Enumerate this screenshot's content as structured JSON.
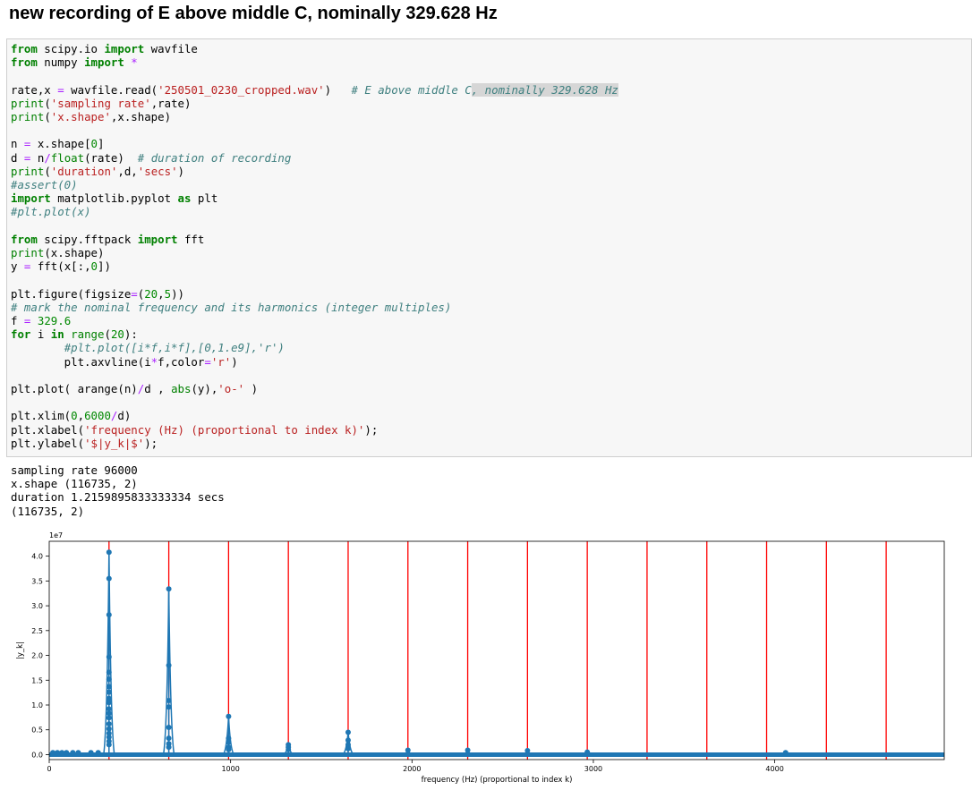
{
  "heading": "new recording of E above middle C, nominally 329.628 Hz",
  "code_lines": [
    [
      [
        "k",
        "from"
      ],
      [
        "p",
        " scipy.io "
      ],
      [
        "k",
        "import"
      ],
      [
        "p",
        " wavfile"
      ]
    ],
    [
      [
        "k",
        "from"
      ],
      [
        "p",
        " numpy "
      ],
      [
        "k",
        "import"
      ],
      [
        "p",
        " "
      ],
      [
        "o",
        "*"
      ]
    ],
    [],
    [
      [
        "p",
        "rate,x "
      ],
      [
        "o",
        "="
      ],
      [
        "p",
        " wavfile.read("
      ],
      [
        "s",
        "'250501_0230_cropped.wav'"
      ],
      [
        "p",
        ")   "
      ],
      [
        "c",
        "# E above middle C"
      ],
      [
        "chl",
        ", nominally 329.628 Hz"
      ]
    ],
    [
      [
        "b",
        "print"
      ],
      [
        "p",
        "("
      ],
      [
        "s",
        "'sampling rate'"
      ],
      [
        "p",
        ",rate)"
      ]
    ],
    [
      [
        "b",
        "print"
      ],
      [
        "p",
        "("
      ],
      [
        "s",
        "'x.shape'"
      ],
      [
        "p",
        ",x.shape)"
      ]
    ],
    [],
    [
      [
        "p",
        "n "
      ],
      [
        "o",
        "="
      ],
      [
        "p",
        " x.shape["
      ],
      [
        "n",
        "0"
      ],
      [
        "p",
        "]"
      ]
    ],
    [
      [
        "p",
        "d "
      ],
      [
        "o",
        "="
      ],
      [
        "p",
        " n"
      ],
      [
        "o",
        "/"
      ],
      [
        "b",
        "float"
      ],
      [
        "p",
        "(rate)  "
      ],
      [
        "c",
        "# duration of recording"
      ]
    ],
    [
      [
        "b",
        "print"
      ],
      [
        "p",
        "("
      ],
      [
        "s",
        "'duration'"
      ],
      [
        "p",
        ",d,"
      ],
      [
        "s",
        "'secs'"
      ],
      [
        "p",
        ")"
      ]
    ],
    [
      [
        "c",
        "#assert(0)"
      ]
    ],
    [
      [
        "k",
        "import"
      ],
      [
        "p",
        " matplotlib.pyplot "
      ],
      [
        "k",
        "as"
      ],
      [
        "p",
        " plt"
      ]
    ],
    [
      [
        "c",
        "#plt.plot(x)"
      ]
    ],
    [],
    [
      [
        "k",
        "from"
      ],
      [
        "p",
        " scipy.fftpack "
      ],
      [
        "k",
        "import"
      ],
      [
        "p",
        " fft"
      ]
    ],
    [
      [
        "b",
        "print"
      ],
      [
        "p",
        "(x.shape)"
      ]
    ],
    [
      [
        "p",
        "y "
      ],
      [
        "o",
        "="
      ],
      [
        "p",
        " fft(x[:,"
      ],
      [
        "n",
        "0"
      ],
      [
        "p",
        "])"
      ]
    ],
    [],
    [
      [
        "p",
        "plt.figure(figsize"
      ],
      [
        "o",
        "="
      ],
      [
        "p",
        "("
      ],
      [
        "n",
        "20"
      ],
      [
        "p",
        ","
      ],
      [
        "n",
        "5"
      ],
      [
        "p",
        "))"
      ]
    ],
    [
      [
        "c",
        "# mark the nominal frequency and its harmonics (integer multiples)"
      ]
    ],
    [
      [
        "p",
        "f "
      ],
      [
        "o",
        "="
      ],
      [
        "p",
        " "
      ],
      [
        "n",
        "329.6"
      ]
    ],
    [
      [
        "k",
        "for"
      ],
      [
        "p",
        " i "
      ],
      [
        "k",
        "in"
      ],
      [
        "p",
        " "
      ],
      [
        "b",
        "range"
      ],
      [
        "p",
        "("
      ],
      [
        "n",
        "20"
      ],
      [
        "p",
        "):"
      ]
    ],
    [
      [
        "p",
        "        "
      ],
      [
        "c",
        "#plt.plot([i*f,i*f],[0,1.e9],'r')"
      ]
    ],
    [
      [
        "p",
        "        plt.axvline(i"
      ],
      [
        "o",
        "*"
      ],
      [
        "p",
        "f,color"
      ],
      [
        "o",
        "="
      ],
      [
        "s",
        "'r'"
      ],
      [
        "p",
        ")"
      ]
    ],
    [],
    [
      [
        "p",
        "plt.plot( arange(n)"
      ],
      [
        "o",
        "/"
      ],
      [
        "p",
        "d , "
      ],
      [
        "b",
        "abs"
      ],
      [
        "p",
        "(y),"
      ],
      [
        "s",
        "'o-'"
      ],
      [
        "p",
        " )"
      ]
    ],
    [],
    [
      [
        "p",
        "plt.xlim("
      ],
      [
        "n",
        "0"
      ],
      [
        "p",
        ","
      ],
      [
        "n",
        "6000"
      ],
      [
        "o",
        "/"
      ],
      [
        "p",
        "d)"
      ]
    ],
    [
      [
        "p",
        "plt.xlabel("
      ],
      [
        "s",
        "'frequency (Hz) (proportional to index k)'"
      ],
      [
        "p",
        ");"
      ]
    ],
    [
      [
        "p",
        "plt.ylabel("
      ],
      [
        "s",
        "'$|y_k|$'"
      ],
      [
        "p",
        ");"
      ]
    ]
  ],
  "output": {
    "line1": "sampling rate 96000",
    "line2": "x.shape (116735, 2)",
    "line3": "duration 1.2159895833333334 secs",
    "line4": "(116735, 2)"
  },
  "chart_data": {
    "type": "line",
    "xlabel": "frequency (Hz) (proportional to index k)",
    "ylabel": "|y_k|",
    "y_offset_label": "1e7",
    "xlim": [
      0,
      4934.6
    ],
    "ylim": [
      -0.1,
      4.3
    ],
    "x_ticks": [
      0,
      1000,
      2000,
      3000,
      4000
    ],
    "y_ticks": [
      0.0,
      0.5,
      1.0,
      1.5,
      2.0,
      2.5,
      3.0,
      3.5,
      4.0
    ],
    "y_tick_labels": [
      "0.0",
      "0.5",
      "1.0",
      "1.5",
      "2.0",
      "2.5",
      "3.0",
      "3.5",
      "4.0"
    ],
    "harmonic_lines_x": [
      329.6,
      659.2,
      988.8,
      1318.4,
      1648.0,
      1977.6,
      2307.2,
      2636.8,
      2966.4,
      3296.0,
      3625.6,
      3955.2,
      4284.8,
      4614.4
    ],
    "peaks": [
      {
        "x": 329.6,
        "values": [
          4.08,
          3.55,
          2.82,
          1.97,
          1.66,
          1.52,
          1.37,
          1.26,
          1.13,
          1.05,
          0.92,
          0.83,
          0.74,
          0.62,
          0.52,
          0.43,
          0.35,
          0.27,
          0.2
        ]
      },
      {
        "x": 659.2,
        "values": [
          3.34,
          1.8,
          1.09,
          0.96,
          0.55,
          0.33,
          0.22,
          0.15
        ]
      },
      {
        "x": 988.8,
        "values": [
          0.77,
          0.33,
          0.25,
          0.15,
          0.1
        ]
      },
      {
        "x": 1318.4,
        "values": [
          0.2,
          0.15,
          0.1
        ]
      },
      {
        "x": 1648.0,
        "values": [
          0.45,
          0.29,
          0.2,
          0.12
        ]
      },
      {
        "x": 1977.6,
        "values": [
          0.09
        ]
      },
      {
        "x": 2307.2,
        "values": [
          0.09
        ]
      },
      {
        "x": 2636.8,
        "values": [
          0.08
        ]
      },
      {
        "x": 2966.4,
        "values": [
          0.05
        ]
      },
      {
        "x": 4060.0,
        "values": [
          0.04
        ]
      }
    ],
    "series_color": "#1f77b4",
    "line_color": "#ff0000",
    "grid": false
  }
}
